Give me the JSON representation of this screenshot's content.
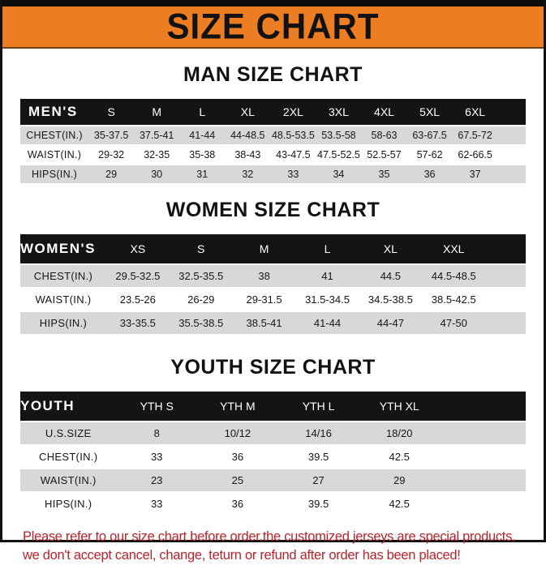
{
  "title": "SIZE CHART",
  "colors": {
    "accent_orange": "#ED7D23",
    "bar_black": "#141414",
    "row_gray": "#D8D8D8",
    "footer_red": "#B5242B"
  },
  "sections": [
    {
      "heading": "MAN SIZE CHART",
      "label_header": "MEN'S",
      "columns": [
        "S",
        "M",
        "L",
        "XL",
        "2XL",
        "3XL",
        "4XL",
        "5XL",
        "6XL"
      ],
      "rows": [
        {
          "label": "CHEST(IN.)",
          "values": [
            "35-37.5",
            "37.5-41",
            "41-44",
            "44-48.5",
            "48.5-53.5",
            "53.5-58",
            "58-63",
            "63-67.5",
            "67.5-72"
          ]
        },
        {
          "label": "WAIST(IN.)",
          "values": [
            "29-32",
            "32-35",
            "35-38",
            "38-43",
            "43-47.5",
            "47.5-52.5",
            "52.5-57",
            "57-62",
            "62-66.5"
          ]
        },
        {
          "label": "HIPS(IN.)",
          "values": [
            "29",
            "30",
            "31",
            "32",
            "33",
            "34",
            "35",
            "36",
            "37"
          ]
        }
      ]
    },
    {
      "heading": "WOMEN SIZE CHART",
      "label_header": "WOMEN'S",
      "columns": [
        "XS",
        "S",
        "M",
        "L",
        "XL",
        "XXL"
      ],
      "rows": [
        {
          "label": "CHEST(IN.)",
          "values": [
            "29.5-32.5",
            "32.5-35.5",
            "38",
            "41",
            "44.5",
            "44.5-48.5"
          ]
        },
        {
          "label": "WAIST(IN.)",
          "values": [
            "23.5-26",
            "26-29",
            "29-31.5",
            "31.5-34.5",
            "34.5-38.5",
            "38.5-42.5"
          ]
        },
        {
          "label": "HIPS(IN.)",
          "values": [
            "33-35.5",
            "35.5-38.5",
            "38.5-41",
            "41-44",
            "44-47",
            "47-50"
          ]
        }
      ]
    },
    {
      "heading": "YOUTH SIZE CHART",
      "label_header": "YOUTH",
      "columns": [
        "YTH S",
        "YTH M",
        "YTH L",
        "YTH XL"
      ],
      "rows": [
        {
          "label": "U.S.SIZE",
          "values": [
            "8",
            "10/12",
            "14/16",
            "18/20"
          ]
        },
        {
          "label": "CHEST(IN.)",
          "values": [
            "33",
            "36",
            "39.5",
            "42.5"
          ]
        },
        {
          "label": "WAIST(IN.)",
          "values": [
            "23",
            "25",
            "27",
            "29"
          ]
        },
        {
          "label": "HIPS(IN.)",
          "values": [
            "33",
            "36",
            "39.5",
            "42.5"
          ]
        }
      ]
    }
  ],
  "footer": {
    "line1": "Please refer to our size chart before order,the customized jerseys are special products,",
    "line2": "we don't accept cancel, change, teturn or refund after order has been placed!"
  }
}
